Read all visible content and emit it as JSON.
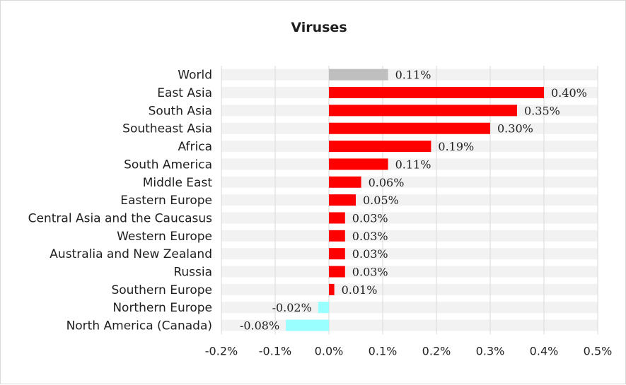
{
  "chart_data": {
    "type": "bar",
    "orientation": "horizontal",
    "title": "Viruses",
    "categories": [
      "World",
      "East Asia",
      "South Asia",
      "Southeast Asia",
      "Africa",
      "South America",
      "Middle East",
      "Eastern Europe",
      "Central Asia and the Caucasus",
      "Western Europe",
      "Australia and New Zealand",
      "Russia",
      "Southern Europe",
      "Northern Europe",
      "North America (Canada)"
    ],
    "values": [
      0.11,
      0.4,
      0.35,
      0.3,
      0.19,
      0.11,
      0.06,
      0.05,
      0.03,
      0.03,
      0.03,
      0.03,
      0.01,
      -0.02,
      -0.08
    ],
    "value_labels": [
      "0.11%",
      "0.40%",
      "0.35%",
      "0.30%",
      "0.19%",
      "0.11%",
      "0.06%",
      "0.05%",
      "0.03%",
      "0.03%",
      "0.03%",
      "0.03%",
      "0.01%",
      "-0.02%",
      "-0.08%"
    ],
    "bar_colors": [
      "#bfbfbf",
      "#ff0000",
      "#ff0000",
      "#ff0000",
      "#ff0000",
      "#ff0000",
      "#ff0000",
      "#ff0000",
      "#ff0000",
      "#ff0000",
      "#ff0000",
      "#ff0000",
      "#ff0000",
      "#99ffff",
      "#99ffff"
    ],
    "x_ticks": [
      -0.2,
      -0.1,
      0.0,
      0.1,
      0.2,
      0.3,
      0.4,
      0.5
    ],
    "x_tick_labels": [
      "-0.2%",
      "-0.1%",
      "0.0%",
      "0.1%",
      "0.2%",
      "0.3%",
      "0.4%",
      "0.5%"
    ],
    "xlim": [
      -0.2,
      0.5
    ],
    "grid": "vertical",
    "legend": "none"
  }
}
